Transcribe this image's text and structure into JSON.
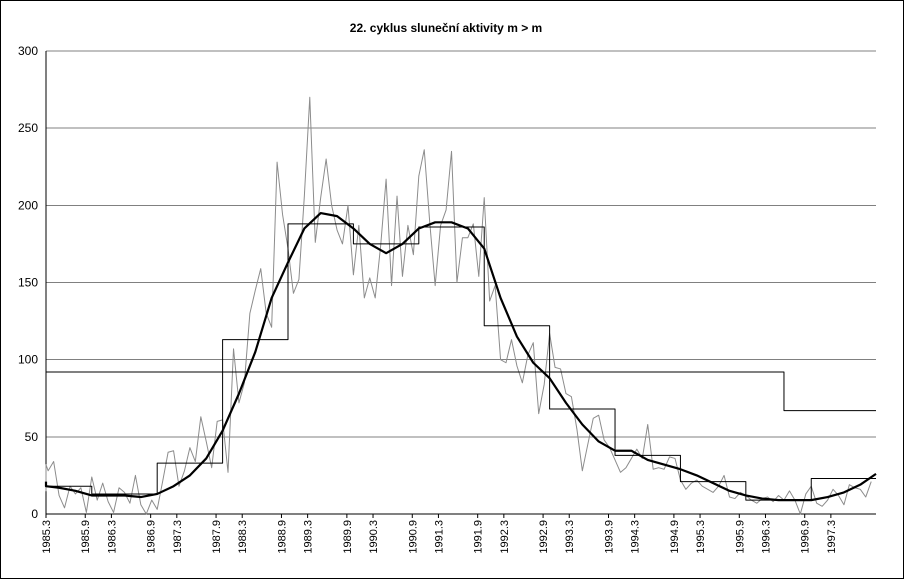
{
  "chart_data": {
    "type": "line",
    "title": "22. cyklus sluneční aktivity  m > m",
    "xlabel": "",
    "ylabel": "",
    "xlim": [
      1985.3,
      1997.99
    ],
    "ylim": [
      0,
      300
    ],
    "grid": true,
    "yticks": [
      "0",
      "50",
      "100",
      "150",
      "200",
      "250",
      "300"
    ],
    "xticks": [
      "1985.3",
      "1985.9",
      "1986.3",
      "1986.9",
      "1987.3",
      "1987.9",
      "1988.3",
      "1988.9",
      "1989.3",
      "1989.9",
      "1990.3",
      "1990.9",
      "1991.3",
      "1991.9",
      "1992.3",
      "1992.9",
      "1993.3",
      "1993.9",
      "1994.3",
      "1994.9",
      "1995.3",
      "1995.9",
      "1996.3",
      "1996.9",
      "1997.3"
    ],
    "colors": {
      "monthly": "#8c8c8c",
      "smoothed": "#000000",
      "annual": "#000000",
      "overall": "#000000"
    },
    "series": [
      {
        "name": "",
        "style": "thin-gray",
        "x": [
          1985.0,
          1985.083,
          1985.167,
          1985.25,
          1985.333,
          1985.417,
          1985.5,
          1985.583,
          1985.667,
          1985.75,
          1985.833,
          1985.917,
          1986.0,
          1986.083,
          1986.167,
          1986.25,
          1986.333,
          1986.417,
          1986.5,
          1986.583,
          1986.667,
          1986.75,
          1986.833,
          1986.917,
          1987.0,
          1987.083,
          1987.167,
          1987.25,
          1987.333,
          1987.417,
          1987.5,
          1987.583,
          1987.667,
          1987.75,
          1987.833,
          1987.917,
          1988.0,
          1988.083,
          1988.167,
          1988.25,
          1988.333,
          1988.417,
          1988.5,
          1988.583,
          1988.667,
          1988.75,
          1988.833,
          1988.917,
          1989.0,
          1989.083,
          1989.167,
          1989.25,
          1989.333,
          1989.417,
          1989.5,
          1989.583,
          1989.667,
          1989.75,
          1989.833,
          1989.917,
          1990.0,
          1990.083,
          1990.167,
          1990.25,
          1990.333,
          1990.417,
          1990.5,
          1990.583,
          1990.667,
          1990.75,
          1990.833,
          1990.917,
          1991.0,
          1991.083,
          1991.167,
          1991.25,
          1991.333,
          1991.417,
          1991.5,
          1991.583,
          1991.667,
          1991.75,
          1991.833,
          1991.917,
          1992.0,
          1992.083,
          1992.167,
          1992.25,
          1992.333,
          1992.417,
          1992.5,
          1992.583,
          1992.667,
          1992.75,
          1992.833,
          1992.917,
          1993.0,
          1993.083,
          1993.167,
          1993.25,
          1993.333,
          1993.417,
          1993.5,
          1993.583,
          1993.667,
          1993.75,
          1993.833,
          1993.917,
          1994.0,
          1994.083,
          1994.167,
          1994.25,
          1994.333,
          1994.417,
          1994.5,
          1994.583,
          1994.667,
          1994.75,
          1994.833,
          1994.917,
          1995.0,
          1995.083,
          1995.167,
          1995.25,
          1995.333,
          1995.417,
          1995.5,
          1995.583,
          1995.667,
          1995.75,
          1995.833,
          1995.917,
          1996.0,
          1996.083,
          1996.167,
          1996.25,
          1996.333,
          1996.417,
          1996.5,
          1996.583,
          1996.667,
          1996.75,
          1996.833,
          1996.917,
          1997.0,
          1997.083,
          1997.167,
          1997.25,
          1997.333,
          1997.417,
          1997.5,
          1997.583,
          1997.667,
          1997.75,
          1997.833,
          1997.917
        ],
        "y": [
          19,
          15,
          22,
          32,
          28,
          34,
          12,
          4,
          18,
          13,
          17,
          1,
          24,
          9,
          20,
          8,
          1,
          17,
          14,
          7,
          25,
          6,
          0,
          9,
          3,
          21,
          40,
          41,
          18,
          28,
          43,
          34,
          63,
          47,
          30,
          60,
          61,
          27,
          107,
          72,
          85,
          130,
          145,
          159,
          130,
          121,
          228,
          194,
          172,
          143,
          152,
          206,
          270,
          176,
          205,
          230,
          200,
          184,
          175,
          200,
          155,
          187,
          140,
          153,
          140,
          174,
          217,
          148,
          206,
          154,
          187,
          168,
          219,
          236,
          189,
          148,
          187,
          197,
          235,
          150,
          179,
          179,
          188,
          154,
          205,
          138,
          148,
          100,
          98,
          113,
          96,
          85,
          103,
          111,
          65,
          84,
          117,
          95,
          94,
          78,
          76,
          55,
          28,
          45,
          62,
          64,
          48,
          43,
          35,
          27,
          30,
          36,
          42,
          36,
          58,
          29,
          30,
          29,
          37,
          36,
          22,
          16,
          20,
          22,
          18,
          16,
          14,
          18,
          25,
          11,
          10,
          14,
          12,
          9,
          7,
          10,
          11,
          8,
          12,
          9,
          15,
          9,
          0,
          13,
          18,
          7,
          5,
          9,
          16,
          12,
          6,
          19,
          17,
          16,
          11,
          21
        ]
      },
      {
        "name": "",
        "style": "thick-smoothed",
        "x": [
          1985.0,
          1985.25,
          1985.5,
          1985.75,
          1986.0,
          1986.25,
          1986.5,
          1986.75,
          1987.0,
          1987.25,
          1987.5,
          1987.75,
          1988.0,
          1988.25,
          1988.5,
          1988.75,
          1989.0,
          1989.25,
          1989.5,
          1989.75,
          1990.0,
          1990.25,
          1990.5,
          1990.75,
          1991.0,
          1991.25,
          1991.5,
          1991.75,
          1992.0,
          1992.25,
          1992.5,
          1992.75,
          1993.0,
          1993.25,
          1993.5,
          1993.75,
          1994.0,
          1994.25,
          1994.5,
          1994.75,
          1995.0,
          1995.25,
          1995.5,
          1995.75,
          1996.0,
          1996.25,
          1996.5,
          1996.75,
          1997.0,
          1997.25,
          1997.5,
          1997.75,
          1997.99
        ],
        "y": [
          21,
          18,
          17,
          15,
          12,
          12,
          12,
          11,
          13,
          18,
          25,
          36,
          54,
          78,
          105,
          140,
          163,
          185,
          195,
          193,
          185,
          175,
          169,
          175,
          185,
          189,
          189,
          185,
          172,
          140,
          115,
          98,
          88,
          72,
          58,
          47,
          41,
          41,
          35,
          32,
          29,
          25,
          20,
          15,
          12,
          10,
          9,
          9,
          9,
          11,
          14,
          19,
          26
        ]
      },
      {
        "name": "",
        "style": "annual-steps",
        "x": [
          1985.0,
          1986.0,
          1986.0,
          1987.0,
          1987.0,
          1988.0,
          1988.0,
          1989.0,
          1989.0,
          1990.0,
          1990.0,
          1991.0,
          1991.0,
          1992.0,
          1992.0,
          1993.0,
          1993.0,
          1994.0,
          1994.0,
          1995.0,
          1995.0,
          1996.0,
          1996.0,
          1997.0,
          1997.0,
          1997.99
        ],
        "y": [
          18,
          18,
          13,
          13,
          33,
          33,
          113,
          113,
          188,
          188,
          175,
          175,
          186,
          186,
          122,
          122,
          68,
          68,
          38,
          38,
          21,
          21,
          9,
          9,
          23,
          23
        ]
      },
      {
        "name": "",
        "style": "overall-mean",
        "x": [
          1985.0,
          1996.583,
          1996.583,
          1997.99
        ],
        "y": [
          92,
          92,
          67,
          67
        ]
      }
    ]
  }
}
